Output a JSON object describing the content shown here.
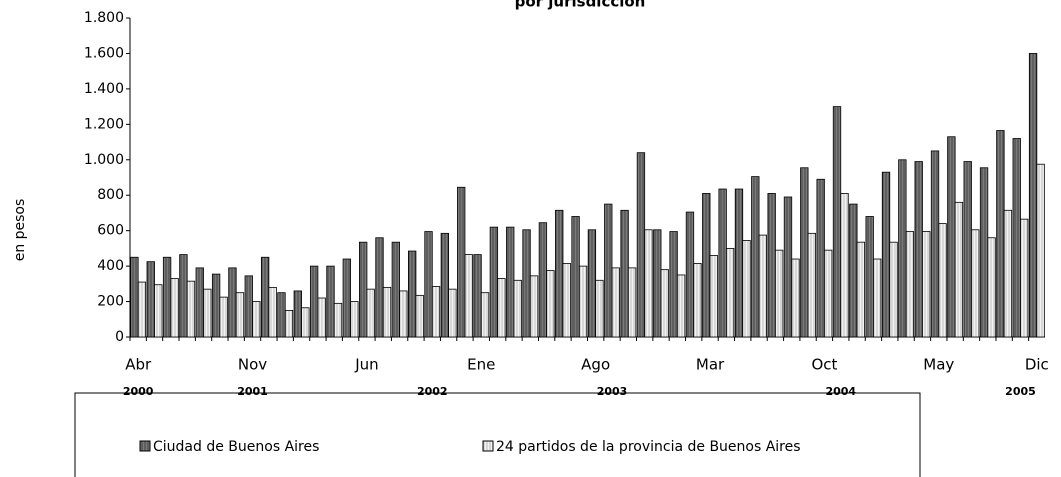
{
  "chart_data": {
    "type": "bar",
    "title": "por jurisdicción",
    "ylabel": "en pesos",
    "categories": [
      "Abr",
      null,
      null,
      null,
      null,
      null,
      null,
      "Nov",
      null,
      null,
      null,
      null,
      null,
      null,
      "Jun",
      null,
      null,
      null,
      null,
      null,
      null,
      "Ene",
      null,
      null,
      null,
      null,
      null,
      null,
      "Ago",
      null,
      null,
      null,
      null,
      null,
      null,
      "Mar",
      null,
      null,
      null,
      null,
      null,
      null,
      "Oct",
      null,
      null,
      null,
      null,
      null,
      null,
      "May",
      null,
      null,
      null,
      null,
      null,
      "Dic"
    ],
    "year_categories": [
      "2000",
      null,
      null,
      null,
      null,
      null,
      null,
      "2001",
      null,
      null,
      null,
      null,
      null,
      null,
      null,
      null,
      null,
      null,
      "2002",
      null,
      null,
      null,
      null,
      null,
      null,
      null,
      null,
      null,
      null,
      "2003",
      null,
      null,
      null,
      null,
      null,
      null,
      null,
      null,
      null,
      null,
      null,
      null,
      null,
      "2004",
      null,
      null,
      null,
      null,
      null,
      null,
      null,
      null,
      null,
      null,
      "2005",
      null
    ],
    "series": [
      {
        "name": "Ciudad de Buenos Aires",
        "color": "#7a7a7a",
        "values": [
          450,
          425,
          450,
          465,
          390,
          355,
          390,
          345,
          450,
          250,
          260,
          400,
          400,
          440,
          535,
          560,
          535,
          485,
          595,
          585,
          845,
          465,
          620,
          620,
          605,
          645,
          715,
          680,
          605,
          750,
          715,
          1040,
          605,
          595,
          705,
          810,
          835,
          835,
          905,
          810,
          790,
          955,
          890,
          1300,
          750,
          680,
          930,
          1000,
          990,
          1050,
          1130,
          990,
          955,
          1165,
          1120,
          1600
        ]
      },
      {
        "name": "24 partidos de la provincia de Buenos Aires",
        "color": "#f2f2f2",
        "values": [
          310,
          295,
          330,
          315,
          270,
          225,
          250,
          200,
          280,
          150,
          165,
          220,
          190,
          200,
          270,
          280,
          260,
          235,
          285,
          270,
          465,
          250,
          330,
          320,
          345,
          375,
          415,
          400,
          320,
          390,
          390,
          605,
          380,
          350,
          415,
          460,
          500,
          545,
          575,
          490,
          440,
          585,
          490,
          810,
          535,
          440,
          535,
          595,
          595,
          640,
          760,
          605,
          560,
          715,
          665,
          975
        ]
      }
    ],
    "ylim": [
      0,
      1800
    ],
    "yticks": [
      0,
      200,
      400,
      600,
      800,
      {
        "value": 1000,
        "label": "1.000"
      },
      {
        "value": 1200,
        "label": "1.200"
      },
      {
        "value": 1400,
        "label": "1.400"
      },
      {
        "value": 1600,
        "label": "1.600"
      },
      {
        "value": 1800,
        "label": "1.800"
      }
    ]
  }
}
